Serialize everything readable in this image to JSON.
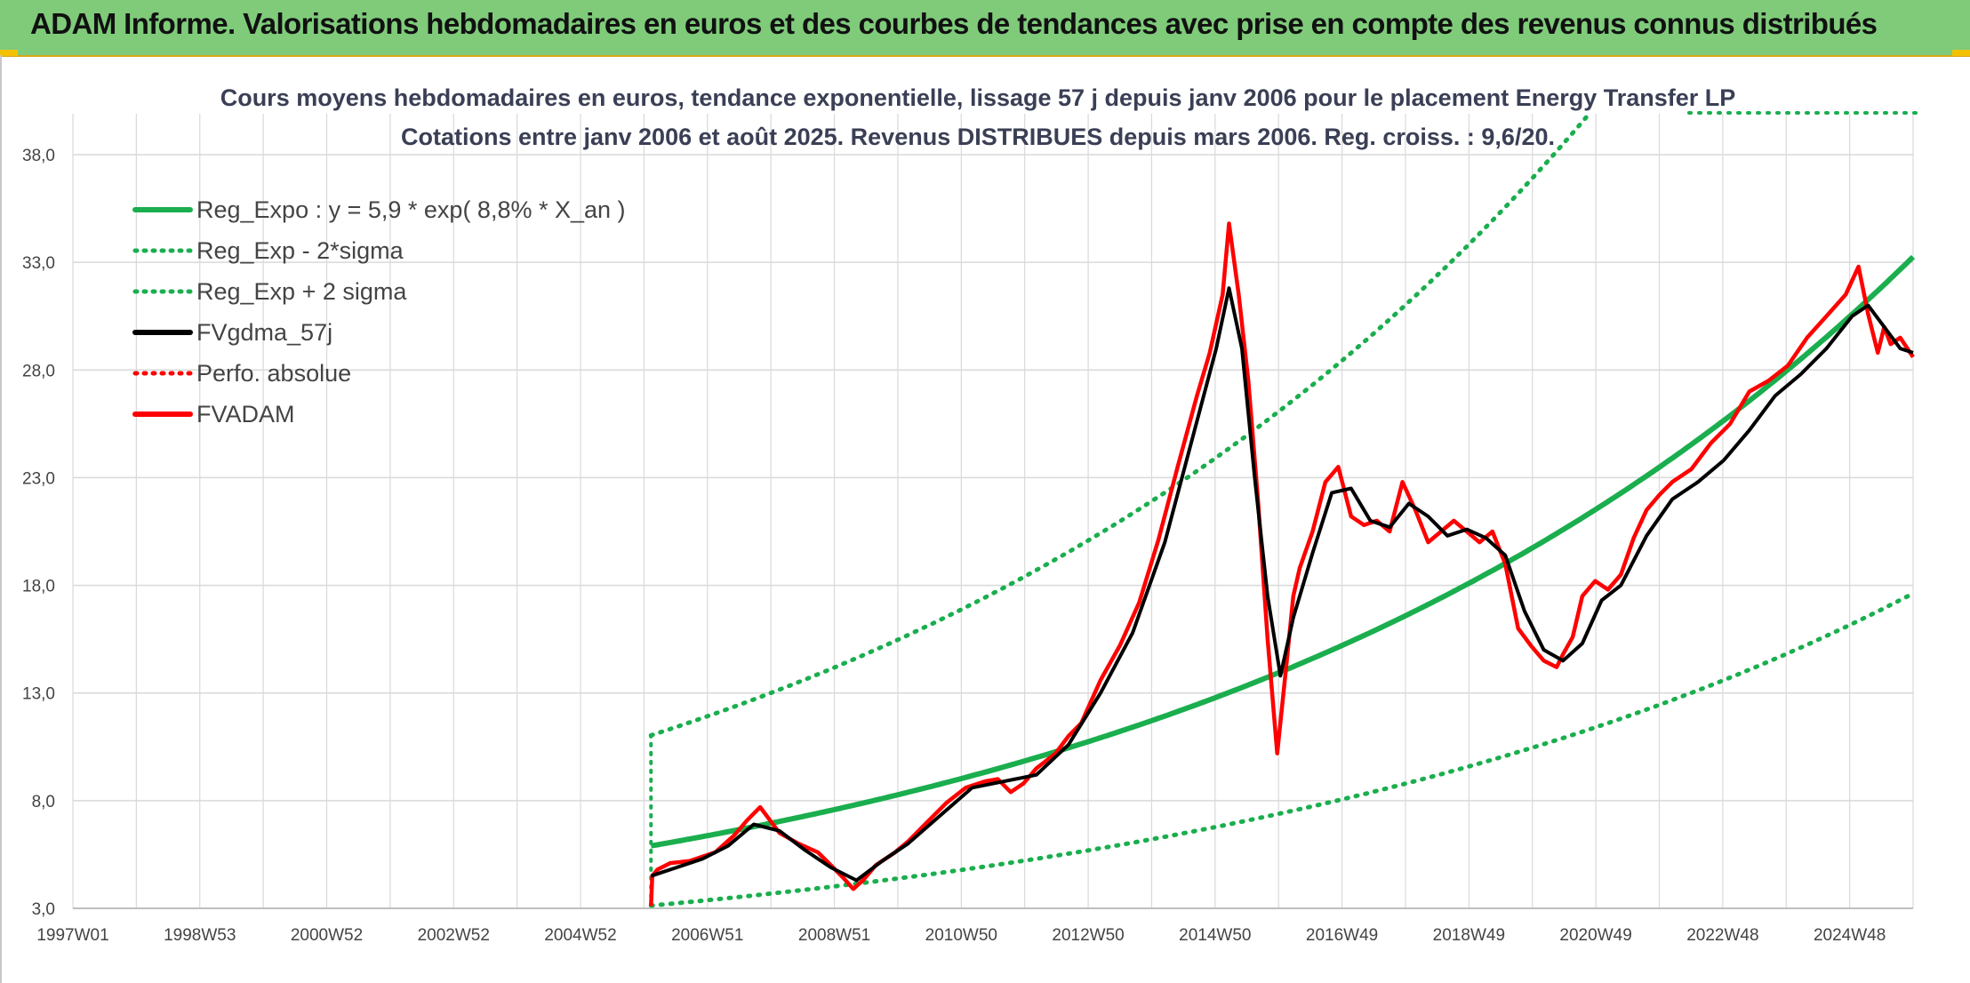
{
  "banner": {
    "title": "ADAM Informe. Valorisations hebdomadaires en euros et des courbes de tendances avec prise en compte des revenus connus distribués"
  },
  "colors": {
    "banner_bg": "#7fcb7a",
    "reg": "#1aae4e",
    "fv": "#ff0000",
    "gdma": "#000000",
    "grid": "#d9d9d9"
  },
  "chart_data": {
    "type": "line",
    "title": "Cours moyens hebdomadaires en euros, tendance exponentielle, lissage 57 j depuis janv 2006 pour le placement Energy Transfer LP",
    "subtitle": "Cotations entre janv 2006 et août 2025. Revenus DISTRIBUES depuis mars 2006. Reg. croiss. : 9,6/20.",
    "x_ticks": [
      "1997W01",
      "1998W53",
      "2000W52",
      "2002W52",
      "2004W52",
      "2006W51",
      "2008W51",
      "2010W50",
      "2012W50",
      "2014W50",
      "2016W49",
      "2018W49",
      "2020W49",
      "2022W48",
      "2024W48"
    ],
    "y_ticks": [
      "3,0",
      "8,0",
      "13,0",
      "18,0",
      "23,0",
      "28,0",
      "33,0",
      "38,0"
    ],
    "ylim": [
      3,
      40
    ],
    "xlim": [
      1997.0,
      2025.65
    ],
    "grid": true,
    "legend_position": "top-left",
    "legend": [
      {
        "label": "Reg_Expo : y = 5,9 * exp( 8,8% *  X_an )",
        "color": "#1aae4e",
        "style": "solid"
      },
      {
        "label": "Reg_Exp - 2*sigma",
        "color": "#1aae4e",
        "style": "dotted"
      },
      {
        "label": "Reg_Exp + 2 sigma",
        "color": "#1aae4e",
        "style": "dotted"
      },
      {
        "label": "FVgdma_57j",
        "color": "#000000",
        "style": "solid"
      },
      {
        "label": "Perfo. absolue",
        "color": "#ff0000",
        "style": "dotted"
      },
      {
        "label": "FVADAM",
        "color": "#ff0000",
        "style": "solid"
      }
    ],
    "regression": {
      "a": 5.9,
      "rate": 0.088,
      "start_year": 2006.0,
      "end_year": 2025.65,
      "minus_factor": 0.53,
      "plus_factor": 1.87
    },
    "series": [
      {
        "name": "FVADAM",
        "x": [
          2006.0,
          2006.02,
          2006.1,
          2006.3,
          2006.6,
          2007.0,
          2007.3,
          2007.5,
          2007.7,
          2008.0,
          2008.3,
          2008.6,
          2008.8,
          2009.0,
          2009.15,
          2009.3,
          2009.5,
          2009.8,
          2010.0,
          2010.3,
          2010.6,
          2010.9,
          2011.2,
          2011.4,
          2011.6,
          2011.8,
          2012.0,
          2012.3,
          2012.5,
          2012.7,
          2013.0,
          2013.3,
          2013.6,
          2013.9,
          2014.2,
          2014.5,
          2014.7,
          2014.9,
          2015.0,
          2015.15,
          2015.3,
          2015.45,
          2015.6,
          2015.75,
          2015.9,
          2016.0,
          2016.1,
          2016.3,
          2016.5,
          2016.7,
          2016.9,
          2017.1,
          2017.3,
          2017.5,
          2017.7,
          2017.9,
          2018.1,
          2018.3,
          2018.5,
          2018.7,
          2018.9,
          2019.1,
          2019.3,
          2019.5,
          2019.7,
          2019.9,
          2020.1,
          2020.2,
          2020.35,
          2020.5,
          2020.7,
          2020.9,
          2021.1,
          2021.3,
          2021.5,
          2021.7,
          2021.9,
          2022.2,
          2022.5,
          2022.8,
          2023.1,
          2023.4,
          2023.7,
          2024.0,
          2024.3,
          2024.6,
          2024.8,
          2024.95,
          2025.1,
          2025.2,
          2025.3,
          2025.45,
          2025.65
        ],
        "values": [
          3.1,
          4.5,
          4.8,
          5.1,
          5.2,
          5.6,
          6.4,
          7.1,
          7.7,
          6.5,
          6.0,
          5.6,
          5.0,
          4.4,
          3.9,
          4.3,
          5.0,
          5.6,
          6.1,
          7.0,
          7.9,
          8.6,
          8.9,
          9.0,
          8.4,
          8.8,
          9.5,
          10.2,
          11.0,
          11.6,
          13.6,
          15.2,
          17.2,
          20.1,
          23.5,
          26.8,
          28.8,
          31.5,
          34.8,
          31.5,
          27.5,
          22.0,
          15.5,
          10.2,
          14.5,
          17.5,
          18.8,
          20.5,
          22.8,
          23.5,
          21.2,
          20.8,
          21.0,
          20.5,
          22.8,
          21.5,
          20.0,
          20.5,
          21.0,
          20.5,
          20.0,
          20.5,
          19.0,
          16.0,
          15.2,
          14.5,
          14.2,
          14.8,
          15.6,
          17.5,
          18.2,
          17.8,
          18.5,
          20.2,
          21.5,
          22.2,
          22.8,
          23.4,
          24.6,
          25.5,
          27.0,
          27.5,
          28.2,
          29.5,
          30.5,
          31.5,
          32.8,
          30.6,
          28.8,
          30.0,
          29.2,
          29.5,
          28.6
        ]
      },
      {
        "name": "FVgdma_57j",
        "x": [
          2006.0,
          2006.1,
          2006.4,
          2006.8,
          2007.2,
          2007.6,
          2008.0,
          2008.4,
          2008.8,
          2009.2,
          2009.6,
          2010.0,
          2010.5,
          2011.0,
          2011.5,
          2012.0,
          2012.5,
          2013.0,
          2013.5,
          2014.0,
          2014.4,
          2014.8,
          2015.0,
          2015.2,
          2015.4,
          2015.6,
          2015.8,
          2016.0,
          2016.3,
          2016.6,
          2016.9,
          2017.2,
          2017.5,
          2017.8,
          2018.1,
          2018.4,
          2018.7,
          2019.0,
          2019.3,
          2019.6,
          2019.9,
          2020.2,
          2020.5,
          2020.8,
          2021.1,
          2021.5,
          2021.9,
          2022.3,
          2022.7,
          2023.1,
          2023.5,
          2023.9,
          2024.3,
          2024.7,
          2024.95,
          2025.2,
          2025.45,
          2025.65
        ],
        "values": [
          4.5,
          4.6,
          4.9,
          5.3,
          5.9,
          6.9,
          6.6,
          5.7,
          4.9,
          4.3,
          5.2,
          6.0,
          7.3,
          8.6,
          8.9,
          9.2,
          10.6,
          13.0,
          15.8,
          20.0,
          24.5,
          29.0,
          31.8,
          29.0,
          23.0,
          17.5,
          13.8,
          16.5,
          19.5,
          22.3,
          22.5,
          21.0,
          20.7,
          21.8,
          21.2,
          20.3,
          20.6,
          20.2,
          19.4,
          16.8,
          15.0,
          14.5,
          15.3,
          17.3,
          18.0,
          20.3,
          22.0,
          22.8,
          23.8,
          25.2,
          26.8,
          27.8,
          29.0,
          30.5,
          31.0,
          30.0,
          29.0,
          28.8
        ]
      }
    ]
  }
}
